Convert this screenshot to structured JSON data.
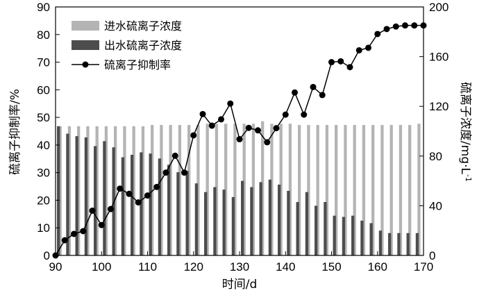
{
  "chart_data": {
    "type": "bar+line",
    "x_label": "时间/d",
    "y_left_label": "硫离子抑制率/%",
    "y_right_label": "硫离子浓度/mg·L",
    "y_right_label_sup": "-1",
    "xlim": [
      90,
      170
    ],
    "x_ticks": [
      90,
      100,
      110,
      120,
      130,
      140,
      150,
      160,
      170
    ],
    "y_left_lim": [
      0,
      90
    ],
    "y_left_ticks": [
      0,
      10,
      20,
      30,
      40,
      50,
      60,
      70,
      80,
      90
    ],
    "y_right_lim": [
      0,
      200
    ],
    "y_right_ticks": [
      0,
      40,
      80,
      120,
      160,
      200
    ],
    "legend_position": "top-left",
    "colors": {
      "influent": "#b4b4b4",
      "effluent": "#4d4d4d",
      "rate": "#000000"
    },
    "bars": {
      "x": [
        91,
        93,
        95,
        97,
        99,
        101,
        103,
        105,
        107,
        109,
        111,
        113,
        115,
        117,
        119,
        121,
        123,
        125,
        127,
        129,
        131,
        133,
        135,
        137,
        139,
        141,
        143,
        145,
        147,
        149,
        151,
        153,
        155,
        157,
        159,
        161,
        163,
        165,
        167,
        169
      ],
      "series": [
        {
          "name": "进水硫离子浓度",
          "axis": "right",
          "values": [
            104,
            104,
            104,
            104,
            104,
            104,
            104,
            104,
            104,
            104,
            105,
            105,
            105,
            105,
            105,
            105,
            106,
            106,
            106,
            106,
            106,
            106,
            108,
            106,
            106,
            106,
            105,
            105,
            105,
            105,
            105,
            105,
            105,
            105,
            105,
            105,
            105,
            105,
            105,
            106
          ]
        },
        {
          "name": "出水硫离子浓度",
          "axis": "right",
          "values": [
            104,
            98,
            96,
            95,
            88,
            92,
            87,
            79,
            81,
            83,
            82,
            78,
            73,
            67,
            68,
            58,
            51,
            55,
            53,
            47,
            60,
            55,
            59,
            61,
            57,
            52,
            43,
            51,
            40,
            43,
            32,
            31,
            32,
            28,
            26,
            20,
            18,
            18,
            18,
            18
          ]
        }
      ]
    },
    "line": {
      "name": "硫离子抑制率",
      "axis": "left",
      "x": [
        90,
        92,
        94,
        96,
        98,
        100,
        102,
        104,
        106,
        108,
        110,
        112,
        114,
        116,
        118,
        120,
        122,
        124,
        126,
        128,
        130,
        132,
        134,
        136,
        138,
        140,
        142,
        144,
        146,
        148,
        150,
        152,
        154,
        156,
        158,
        160,
        162,
        164,
        166,
        168,
        170
      ],
      "values": [
        0,
        5.5,
        7.8,
        8.8,
        16.2,
        11.0,
        16.8,
        24.2,
        22.3,
        19.2,
        21.7,
        24.8,
        30.0,
        36.1,
        30.0,
        43.5,
        51.2,
        47.0,
        49.3,
        55.0,
        42.1,
        46.2,
        45.3,
        41.0,
        46.1,
        51.0,
        59.0,
        51.0,
        61.0,
        58.1,
        70.0,
        70.3,
        68.2,
        74.3,
        75.2,
        80.2,
        82.0,
        82.9,
        83.3,
        83.3,
        83.3
      ]
    }
  }
}
